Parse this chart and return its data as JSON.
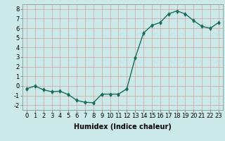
{
  "x": [
    0,
    1,
    2,
    3,
    4,
    5,
    6,
    7,
    8,
    9,
    10,
    11,
    12,
    13,
    14,
    15,
    16,
    17,
    18,
    19,
    20,
    21,
    22,
    23
  ],
  "y": [
    -0.3,
    0.0,
    -0.4,
    -0.6,
    -0.55,
    -0.9,
    -1.5,
    -1.7,
    -1.75,
    -0.85,
    -0.85,
    -0.85,
    -0.3,
    2.9,
    5.5,
    6.3,
    6.6,
    7.5,
    7.8,
    7.5,
    6.8,
    6.2,
    6.0,
    6.6
  ],
  "line_color": "#1a6b5a",
  "marker": "d",
  "marker_size": 2.5,
  "line_width": 1.0,
  "background_color": "#cce9e9",
  "grid_color": "#d4a0a0",
  "xlabel": "Humidex (Indice chaleur)",
  "xlim": [
    -0.5,
    23.5
  ],
  "ylim": [
    -2.5,
    8.5
  ],
  "yticks": [
    -2,
    -1,
    0,
    1,
    2,
    3,
    4,
    5,
    6,
    7,
    8
  ],
  "xticks": [
    0,
    1,
    2,
    3,
    4,
    5,
    6,
    7,
    8,
    9,
    10,
    11,
    12,
    13,
    14,
    15,
    16,
    17,
    18,
    19,
    20,
    21,
    22,
    23
  ],
  "label_fontsize": 7,
  "tick_fontsize": 6
}
